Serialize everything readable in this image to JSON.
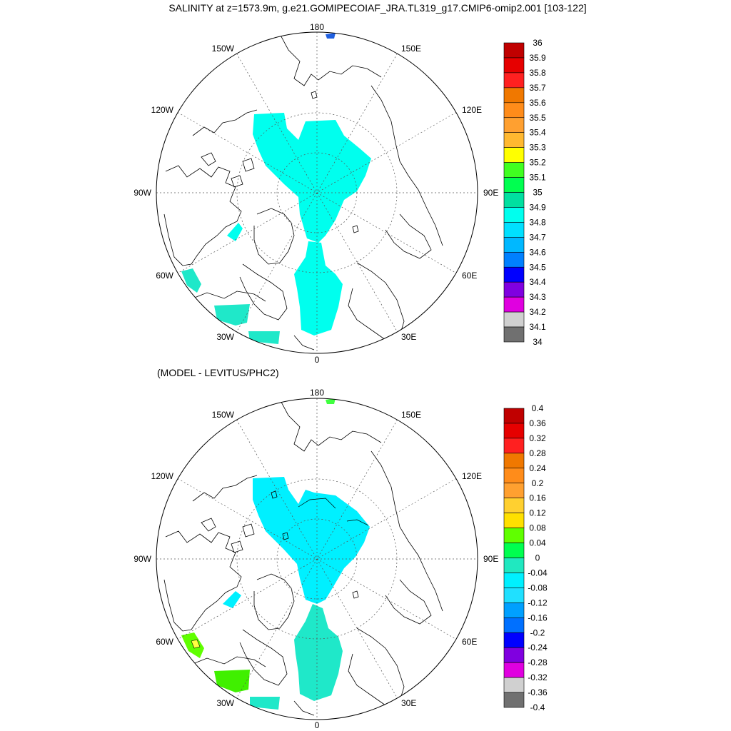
{
  "title": "SALINITY at z=1573.9m, g.e21.GOMIPECOIAF_JRA.TL319_g17.CMIP6-omip2.001 [103-122]",
  "subtitle": "(MODEL - LEVITUS/PHC2)",
  "lon_labels": [
    "180",
    "150E",
    "120E",
    "90E",
    "60E",
    "30E",
    "0",
    "30W",
    "60W",
    "90W",
    "120W",
    "150W"
  ],
  "colors": {
    "land_outline": "#000000",
    "grid": "#555555",
    "salinity_ocean": "#00ffee",
    "diff_ocean": "#00f0ff",
    "diff_atlantic": "#1fe8c9"
  },
  "colorbar_salinity": {
    "labels": [
      "36",
      "35.9",
      "35.8",
      "35.7",
      "35.6",
      "35.5",
      "35.4",
      "35.3",
      "35.2",
      "35.1",
      "35",
      "34.9",
      "34.8",
      "34.7",
      "34.6",
      "34.5",
      "34.4",
      "34.3",
      "34.2",
      "34.1",
      "34"
    ],
    "colors": [
      "#c00000",
      "#e60000",
      "#ff2020",
      "#f07800",
      "#ff8c1a",
      "#ffa030",
      "#ffb830",
      "#ffff00",
      "#40ff20",
      "#00ff50",
      "#00e0a0",
      "#00ffee",
      "#00e0ff",
      "#00b8ff",
      "#0080ff",
      "#0000ff",
      "#8000e0",
      "#e000e0",
      "#d0d0d0",
      "#707070"
    ]
  },
  "colorbar_diff": {
    "labels": [
      "0.4",
      "0.36",
      "0.32",
      "0.28",
      "0.24",
      "0.2",
      "0.16",
      "0.12",
      "0.08",
      "0.04",
      "0",
      "-0.04",
      "-0.08",
      "-0.12",
      "-0.16",
      "-0.2",
      "-0.24",
      "-0.28",
      "-0.32",
      "-0.36",
      "-0.4"
    ],
    "colors": [
      "#c00000",
      "#e60000",
      "#ff2020",
      "#f07800",
      "#ff8c1a",
      "#ffa030",
      "#ffd030",
      "#ffe000",
      "#60ff00",
      "#00ff50",
      "#20e8c0",
      "#00f0ff",
      "#20e0ff",
      "#00a0ff",
      "#0070ff",
      "#0000ff",
      "#8000e0",
      "#e000e0",
      "#d0d0d0",
      "#707070"
    ]
  }
}
